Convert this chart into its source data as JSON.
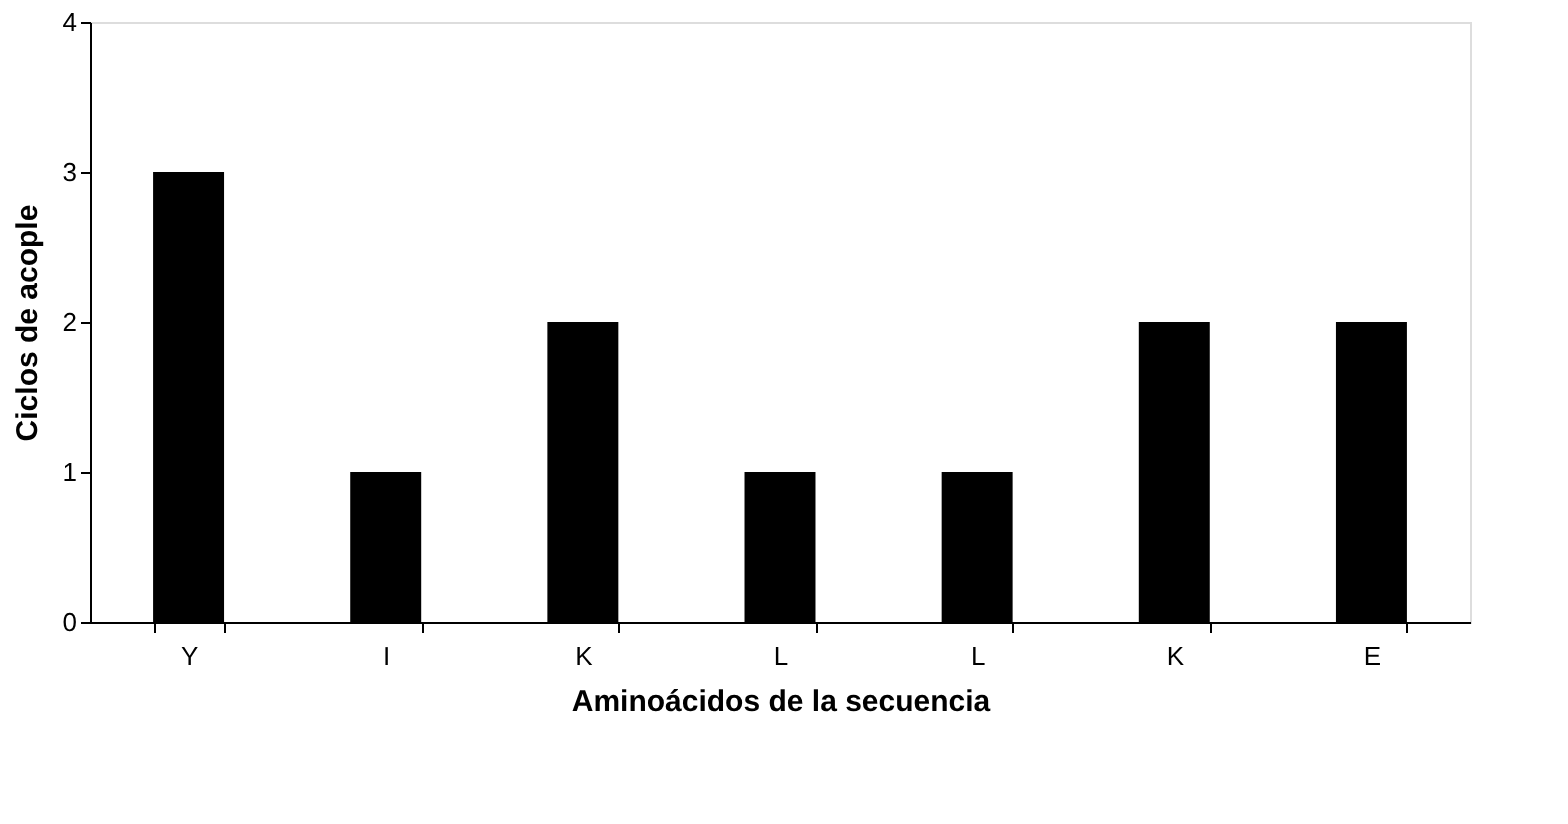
{
  "chart_data": {
    "type": "bar",
    "xlabel": "Aminoácidos de la secuencia",
    "ylabel": "Ciclos de acople",
    "categories": [
      "Y",
      "I",
      "K",
      "L",
      "L",
      "K",
      "E"
    ],
    "values": [
      3,
      1,
      2,
      1,
      1,
      2,
      2
    ],
    "color": "#000000",
    "ylim": [
      0,
      4
    ],
    "yticks": [
      0,
      1,
      2,
      3,
      4
    ],
    "grid": false
  }
}
